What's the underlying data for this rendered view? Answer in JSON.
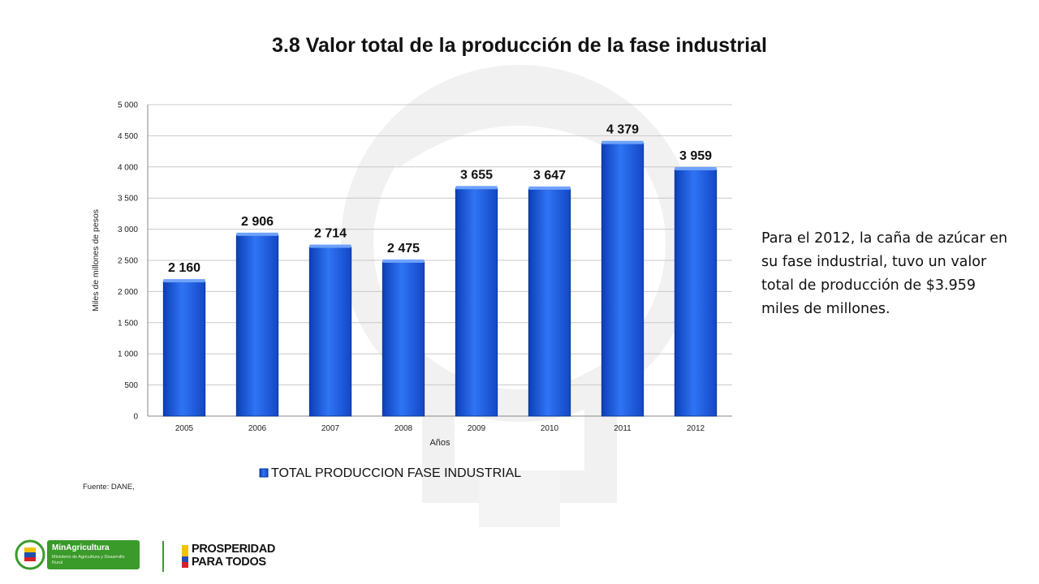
{
  "slide": {
    "title": "3.8 Valor total de la producción de la fase industrial",
    "side_text": "Para el 2012, la caña de azúcar en su fase industrial, tuvo un valor total de producción de $3.959 miles de millones.",
    "source": "Fuente: DANE,"
  },
  "footer": {
    "ministry_name": "MinAgricultura",
    "ministry_subtitle": "Ministerio de Agricultura y Desarrollo Rural",
    "slogan_line1": "PROSPERIDAD",
    "slogan_line2": "PARA TODOS",
    "seal_icon": "colombia-coat-of-arms-icon",
    "green": "#3a9a2a"
  },
  "chart_data": {
    "type": "bar",
    "categories": [
      "2005",
      "2006",
      "2007",
      "2008",
      "2009",
      "2010",
      "2011",
      "2012"
    ],
    "series": [
      {
        "name": "TOTAL PRODUCCION FASE INDUSTRIAL",
        "values": [
          2160,
          2906,
          2714,
          2475,
          3655,
          3647,
          4379,
          3959
        ],
        "labels": [
          "2 160",
          "2 906",
          "2 714",
          "2 475",
          "3 655",
          "3 647",
          "4 379",
          "3 959"
        ],
        "color": "#1f5fe0"
      }
    ],
    "xlabel": "Años",
    "ylabel": "Miles de millones de pesos",
    "ylim": [
      0,
      5000
    ],
    "yticks": [
      0,
      500,
      1000,
      1500,
      2000,
      2500,
      3000,
      3500,
      4000,
      4500,
      5000
    ],
    "ytick_labels": [
      "0",
      "500",
      "1 000",
      "1 500",
      "2 000",
      "2 500",
      "3 000",
      "3 500",
      "4 000",
      "4 500",
      "5 000"
    ],
    "grid": true,
    "legend": "bottom"
  }
}
